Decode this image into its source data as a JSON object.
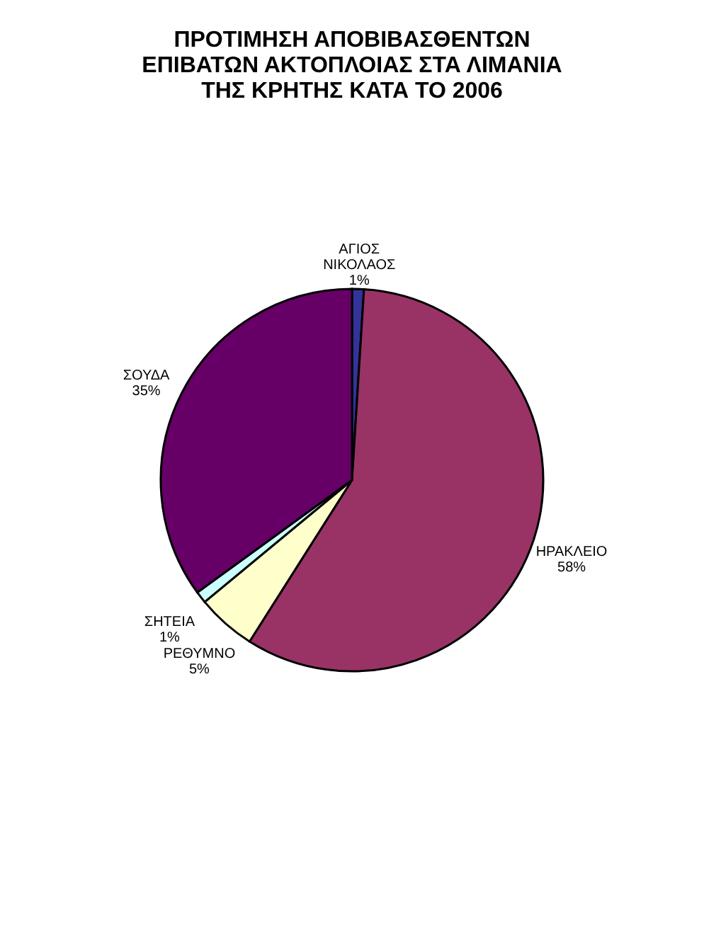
{
  "chart_data": {
    "type": "pie",
    "title": "ΠΡΟΤΙΜΗΣΗ ΑΠΟΒΙΒΑΣΘΕΝΤΩΝ ΕΠΙΒΑΤΩΝ ΑΚΤΟΠΛΟΙΑΣ ΣΤΑ ΛΙΜΑΝΙΑ ΤΗΣ ΚΡΗΤΗΣ ΚΑΤΑ ΤΟ 2006",
    "categories": [
      "ΑΓΙΟΣ ΝΙΚΟΛΑΟΣ",
      "ΗΡΑΚΛΕΙΟ",
      "ΡΕΘΥΜΝΟ",
      "ΣΗΤΕΙΑ",
      "ΣΟΥΔΑ"
    ],
    "values": [
      1,
      58,
      5,
      1,
      35
    ],
    "colors": [
      "#333399",
      "#993366",
      "#ffffcc",
      "#ccffff",
      "#660066"
    ],
    "value_labels": [
      "1%",
      "58%",
      "5%",
      "1%",
      "35%"
    ],
    "legend": false
  }
}
